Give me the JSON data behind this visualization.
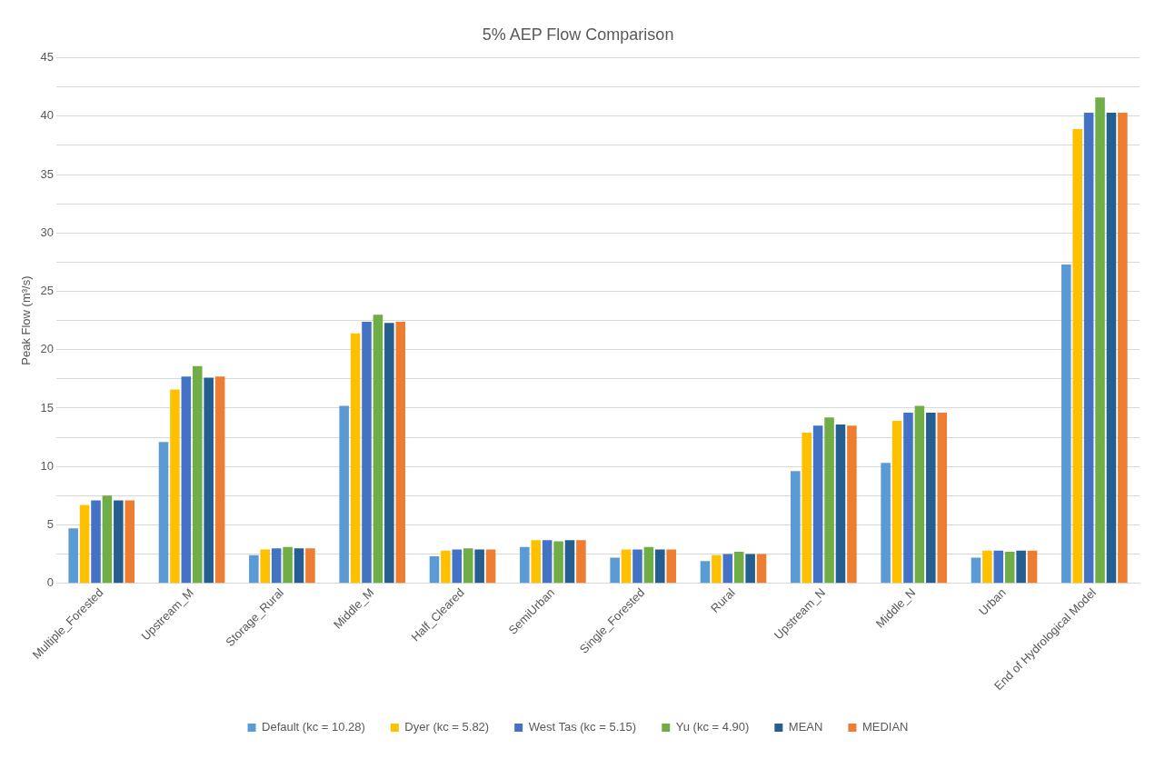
{
  "chart_data": {
    "type": "bar",
    "title": "5% AEP Flow Comparison",
    "ylabel": "Peak Flow (m³/s)",
    "categories": [
      "Multiple_Forested",
      "Upstream_M",
      "Storage_Rural",
      "Middle_M",
      "Half_Cleared",
      "SemiUrban",
      "Single_Forested",
      "Rural",
      "Upstream_N",
      "Middle_N",
      "Urban",
      "End of Hydrological Model"
    ],
    "series": [
      {
        "name": "Default (kc = 10.28)",
        "color": "#5b9bd5",
        "values": [
          4.7,
          12.1,
          2.4,
          15.2,
          2.3,
          3.1,
          2.2,
          1.9,
          9.6,
          10.3,
          2.2,
          27.3
        ]
      },
      {
        "name": "Dyer (kc = 5.82)",
        "color": "#ffc000",
        "values": [
          6.7,
          16.6,
          2.9,
          21.4,
          2.8,
          3.7,
          2.9,
          2.4,
          12.9,
          13.9,
          2.8,
          38.9
        ]
      },
      {
        "name": "West Tas (kc = 5.15)",
        "color": "#4472c4",
        "values": [
          7.1,
          17.7,
          3.0,
          22.4,
          2.9,
          3.7,
          2.9,
          2.5,
          13.5,
          14.6,
          2.8,
          40.3
        ]
      },
      {
        "name": "Yu (kc = 4.90)",
        "color": "#70ad47",
        "values": [
          7.5,
          18.6,
          3.1,
          23.0,
          3.0,
          3.6,
          3.1,
          2.7,
          14.2,
          15.2,
          2.7,
          41.6
        ]
      },
      {
        "name": "MEAN",
        "color": "#255e91",
        "values": [
          7.1,
          17.6,
          3.0,
          22.3,
          2.9,
          3.7,
          2.9,
          2.5,
          13.6,
          14.6,
          2.8,
          40.3
        ]
      },
      {
        "name": "MEDIAN",
        "color": "#ed7d31",
        "values": [
          7.1,
          17.7,
          3.0,
          22.4,
          2.9,
          3.7,
          2.9,
          2.5,
          13.5,
          14.6,
          2.8,
          40.3
        ]
      }
    ],
    "ylim": [
      0,
      45
    ],
    "yticks": [
      0,
      {
        "value": 2.5,
        "label": null
      },
      5,
      {
        "value": 7.5,
        "label": null
      },
      10,
      {
        "value": 12.5,
        "label": null
      },
      15,
      {
        "value": 17.5,
        "label": null
      },
      20,
      {
        "value": 22.5,
        "label": null
      },
      25,
      {
        "value": 27.5,
        "label": null
      },
      30,
      {
        "value": 32.5,
        "label": null
      },
      35,
      {
        "value": 37.5,
        "label": null
      },
      40,
      {
        "value": 42.5,
        "label": null
      },
      45
    ],
    "grid": "y",
    "legend": "bottom"
  }
}
